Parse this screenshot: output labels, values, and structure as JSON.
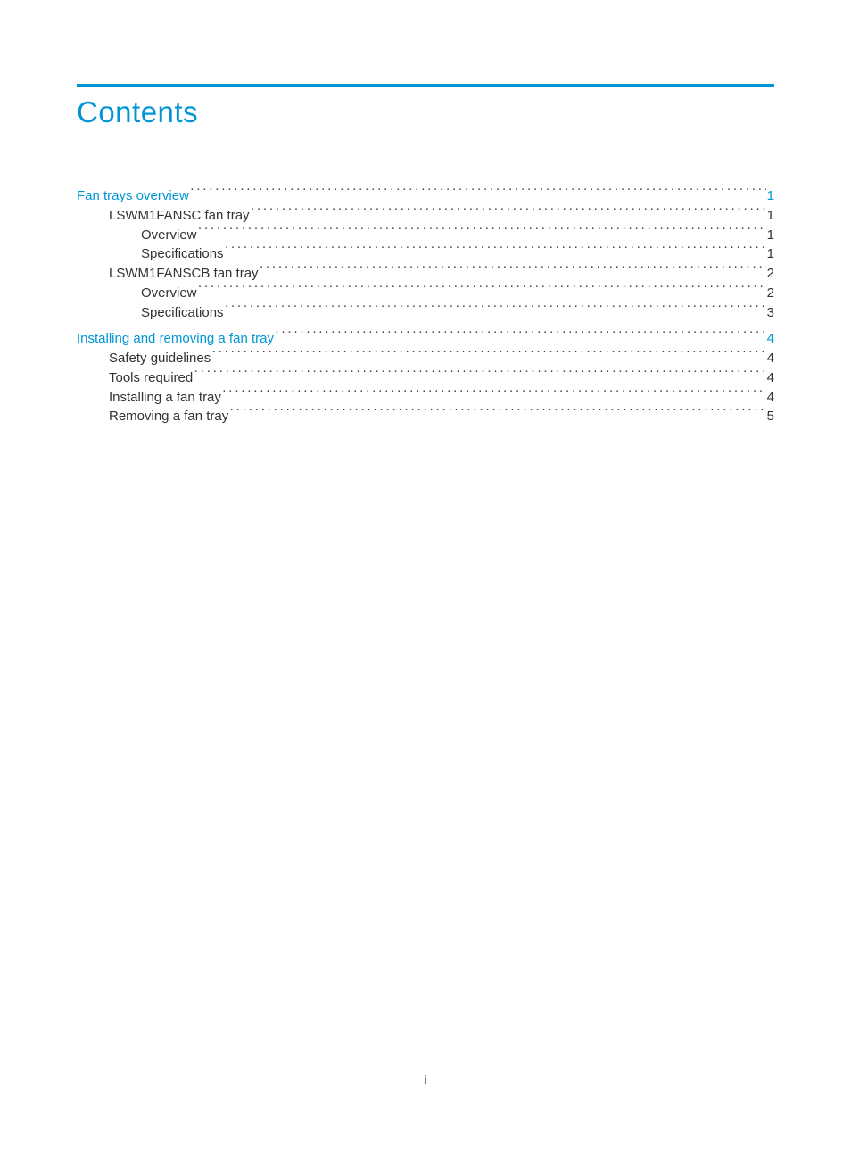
{
  "colors": {
    "accent": "#0096d6",
    "text": "#333333",
    "background": "#ffffff",
    "leader": "#444444"
  },
  "typography": {
    "title_fontsize": 33,
    "body_fontsize": 15,
    "pagenum_fontsize": 14,
    "font_family": "Arial, Helvetica, sans-serif"
  },
  "title": "Contents",
  "page_number": "i",
  "toc": [
    {
      "label": "Fan trays overview",
      "page": "1",
      "level": 0,
      "link": true
    },
    {
      "label": "LSWM1FANSC fan tray",
      "page": "1",
      "level": 1,
      "link": false
    },
    {
      "label": "Overview",
      "page": "1",
      "level": 2,
      "link": false
    },
    {
      "label": "Specifications",
      "page": "1",
      "level": 2,
      "link": false
    },
    {
      "label": "LSWM1FANSCB fan tray",
      "page": "2",
      "level": 1,
      "link": false
    },
    {
      "label": "Overview",
      "page": "2",
      "level": 2,
      "link": false
    },
    {
      "label": "Specifications",
      "page": "3",
      "level": 2,
      "link": false
    },
    {
      "spacer": true
    },
    {
      "label": "Installing and removing a fan tray",
      "page": "4",
      "level": 0,
      "link": true
    },
    {
      "label": "Safety guidelines",
      "page": "4",
      "level": 1,
      "link": false
    },
    {
      "label": "Tools required",
      "page": "4",
      "level": 1,
      "link": false
    },
    {
      "label": "Installing a fan tray",
      "page": "4",
      "level": 1,
      "link": false
    },
    {
      "label": "Removing a fan tray",
      "page": "5",
      "level": 1,
      "link": false
    }
  ]
}
